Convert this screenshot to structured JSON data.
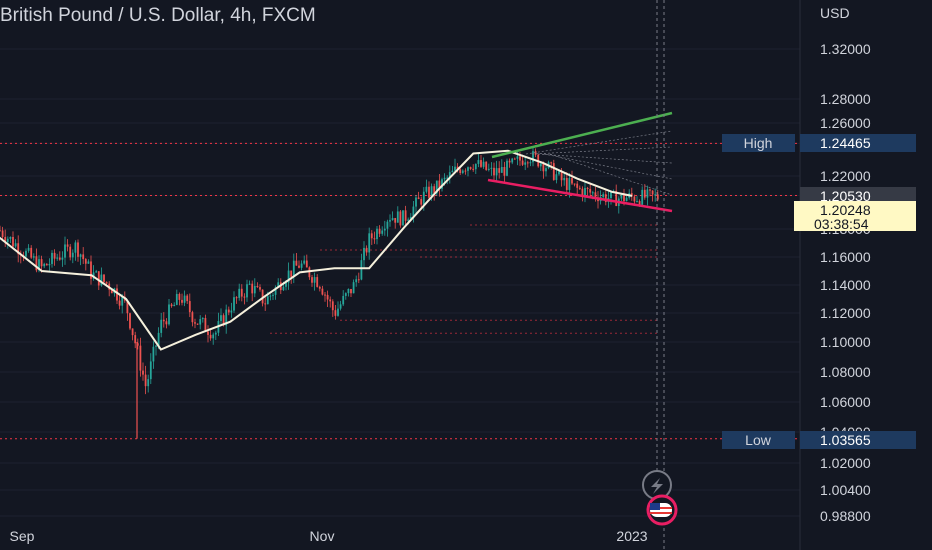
{
  "header": {
    "title": "British Pound / U.S. Dollar, 4h, FXCM"
  },
  "colors": {
    "background": "#131722",
    "up_candle": "#26a69a",
    "down_candle": "#ef5350",
    "moving_average": "#f5f0dc",
    "upper_trendline": "#4caf50",
    "lower_trendline": "#e91e63",
    "price_tag": "#fff9c4",
    "high_low_tag": "#1e3a5f"
  },
  "chart_data": {
    "type": "line",
    "symbol": "GBP/USD",
    "timeframe": "4h",
    "price_axis": {
      "currency_label": "USD",
      "ticks": [
        "1.32000",
        "1.28000",
        "1.26000",
        "1.24465",
        "1.22000",
        "1.20530",
        "1.18000",
        "1.16000",
        "1.14000",
        "1.12000",
        "1.10000",
        "1.08000",
        "1.06000",
        "1.04000",
        "1.02000",
        "1.00400",
        "0.98800"
      ],
      "ylim": [
        0.98,
        1.335
      ]
    },
    "time_axis": {
      "ticks": [
        "Sep",
        "Nov",
        "2023"
      ]
    },
    "markers": {
      "high": {
        "label": "High",
        "value": "1.24465"
      },
      "low": {
        "label": "Low",
        "value": "1.03565"
      },
      "last_price": {
        "value": "1.20248",
        "countdown": "03:38:54"
      },
      "prev_close": {
        "value": "1.20530"
      }
    },
    "series": [
      {
        "kind": "price",
        "x": [
          "Aug 26",
          "Sep 1",
          "Sep 5",
          "Sep 8",
          "Sep 12",
          "Sep 15",
          "Sep 19",
          "Sep 22",
          "Sep 26",
          "Sep 29",
          "Oct 3",
          "Oct 6",
          "Oct 10",
          "Oct 13",
          "Oct 17",
          "Oct 20",
          "Oct 24",
          "Oct 27",
          "Oct 31",
          "Nov 3",
          "Nov 7",
          "Nov 10",
          "Nov 14",
          "Nov 17",
          "Nov 21",
          "Nov 24",
          "Nov 28",
          "Dec 1",
          "Dec 5",
          "Dec 8",
          "Dec 12",
          "Dec 15",
          "Dec 19",
          "Dec 22",
          "Dec 26",
          "Dec 29",
          "Jan 2"
        ],
        "values": [
          1.184,
          1.165,
          1.152,
          1.16,
          1.168,
          1.148,
          1.139,
          1.125,
          1.07,
          1.112,
          1.132,
          1.115,
          1.106,
          1.125,
          1.14,
          1.128,
          1.146,
          1.155,
          1.142,
          1.12,
          1.14,
          1.172,
          1.19,
          1.188,
          1.205,
          1.212,
          1.226,
          1.23,
          1.222,
          1.226,
          1.236,
          1.23,
          1.216,
          1.21,
          1.206,
          1.203,
          1.204
        ]
      },
      {
        "kind": "moving_average",
        "x": [
          "Aug 26",
          "Sep 5",
          "Sep 15",
          "Sep 22",
          "Sep 29",
          "Oct 6",
          "Oct 13",
          "Oct 20",
          "Oct 27",
          "Nov 3",
          "Nov 10",
          "Nov 17",
          "Nov 24",
          "Dec 1",
          "Dec 8",
          "Dec 15",
          "Dec 22",
          "Dec 29",
          "Jan 2"
        ],
        "values": [
          1.178,
          1.15,
          1.147,
          1.13,
          1.095,
          1.105,
          1.114,
          1.132,
          1.149,
          1.152,
          1.152,
          1.181,
          1.21,
          1.237,
          1.239,
          1.23,
          1.218,
          1.208,
          1.205
        ]
      }
    ]
  }
}
